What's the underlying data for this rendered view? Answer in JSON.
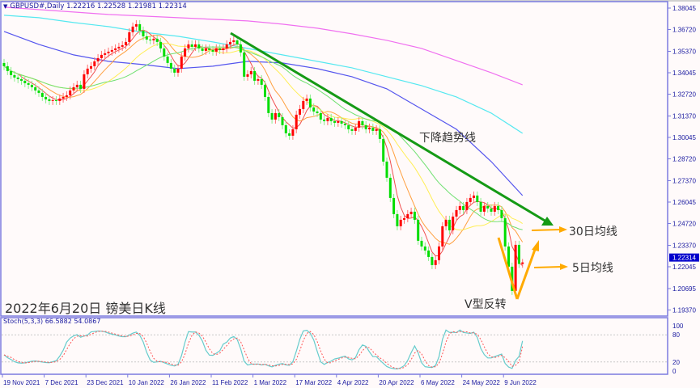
{
  "header": {
    "symbol": "GBPUSD#,Daily",
    "ohlc": "1.22216 1.22528 1.21981 1.22314"
  },
  "stoch_header": "Stoch(5,3,3) 66.5882 54.0867",
  "title": "2022年6月20日 镑美日K线",
  "annotations": {
    "trendline": "下降趋势线",
    "ma30": "30日均线",
    "ma5": "5日均线",
    "v_reversal": "V型反转"
  },
  "colors": {
    "bull": "#ff0000",
    "bear": "#00dd00",
    "ma5": "#f05050",
    "ma10": "#ffa040",
    "ma20": "#ffee55",
    "ma30": "#70e070",
    "ma_blue": "#5555ee",
    "ma_cyan": "#55e8f0",
    "ma_magenta": "#f070f0",
    "trendline": "#159a15",
    "arrows": "#ffaa00",
    "axis": "#7b7bdf",
    "price_tag": "#0000cc"
  },
  "chart_data": {
    "type": "candlestick",
    "symbol": "GBPUSD#",
    "timeframe": "Daily",
    "ylim": [
      1.19,
      1.383
    ],
    "price_ticks": [
      "1.38045",
      "1.36720",
      "1.35370",
      "1.34045",
      "1.32720",
      "1.31370",
      "1.30045",
      "1.28720",
      "1.27370",
      "1.26045",
      "1.24720",
      "1.23370",
      "1.22045",
      "1.20695",
      "1.19370"
    ],
    "current_price": "1.22314",
    "x_tick_every": 12,
    "x_ticks": [
      "19 Nov 2021",
      "7 Dec 2021",
      "23 Dec 2021",
      "10 Jan 2022",
      "26 Jan 2022",
      "11 Feb 2022",
      "1 Mar 2022",
      "17 Mar 2022",
      "4 Apr 2022",
      "20 Apr 2022",
      "6 May 2022",
      "24 May 2022",
      "9 Jun 2022"
    ],
    "closes": [
      1.3445,
      1.3415,
      1.339,
      1.3375,
      1.3365,
      1.3355,
      1.334,
      1.333,
      1.3315,
      1.3295,
      1.328,
      1.3255,
      1.324,
      1.323,
      1.3235,
      1.323,
      1.3245,
      1.3255,
      1.3265,
      1.3295,
      1.3315,
      1.333,
      1.3305,
      1.3395,
      1.343,
      1.3445,
      1.3475,
      1.3495,
      1.3515,
      1.3525,
      1.3535,
      1.3545,
      1.3555,
      1.3565,
      1.3575,
      1.3595,
      1.3655,
      1.369,
      1.3705,
      1.3665,
      1.363,
      1.361,
      1.3605,
      1.3615,
      1.3595,
      1.3555,
      1.3505,
      1.3465,
      1.343,
      1.3405,
      1.343,
      1.3505,
      1.3555,
      1.358,
      1.3565,
      1.358,
      1.3555,
      1.354,
      1.3555,
      1.3545,
      1.3535,
      1.3555,
      1.3545,
      1.3555,
      1.358,
      1.3595,
      1.3605,
      1.358,
      1.353,
      1.338,
      1.3395,
      1.3415,
      1.3355,
      1.3365,
      1.333,
      1.3255,
      1.3155,
      1.3115,
      1.3155,
      1.313,
      1.308,
      1.303,
      1.3015,
      1.3055,
      1.3145,
      1.318,
      1.323,
      1.3245,
      1.319,
      1.3165,
      1.3155,
      1.3115,
      1.3105,
      1.3125,
      1.3105,
      1.3095,
      1.3105,
      1.309,
      1.308,
      1.3055,
      1.3045,
      1.3065,
      1.3105,
      1.308,
      1.3055,
      1.3065,
      1.3045,
      1.3055,
      1.2995,
      1.2855,
      1.2755,
      1.263,
      1.253,
      1.2455,
      1.2495,
      1.2505,
      1.253,
      1.2545,
      1.2495,
      1.2365,
      1.233,
      1.2305,
      1.2265,
      1.2215,
      1.2245,
      1.233,
      1.2455,
      1.2495,
      1.243,
      1.2515,
      1.2555,
      1.258,
      1.2555,
      1.2605,
      1.263,
      1.2645,
      1.2605,
      1.2545,
      1.258,
      1.2565,
      1.2545,
      1.258,
      1.2555,
      1.2505,
      1.233,
      1.2205,
      1.2055,
      1.234,
      1.2222,
      1.22314
    ],
    "last_bar": {
      "open": 1.22216,
      "high": 1.22528,
      "low": 1.21981,
      "close": 1.22314
    },
    "long_ma_sample_every": 10,
    "long_mas": [
      {
        "color": "#5555ee",
        "values": [
          1.366,
          1.358,
          1.3515,
          1.3475,
          1.3455,
          1.343,
          1.3445,
          1.3475,
          1.3465,
          1.343,
          1.338,
          1.3305,
          1.318,
          1.3055,
          1.2855,
          1.2645
        ]
      },
      {
        "color": "#55e8f0",
        "values": [
          1.376,
          1.3745,
          1.3715,
          1.369,
          1.3655,
          1.363,
          1.3595,
          1.3555,
          1.3515,
          1.3475,
          1.3435,
          1.338,
          1.3325,
          1.3255,
          1.3155,
          1.303
        ]
      },
      {
        "color": "#f070f0",
        "values": [
          1.381,
          1.3795,
          1.378,
          1.3765,
          1.3755,
          1.3745,
          1.3735,
          1.3725,
          1.3705,
          1.368,
          1.3645,
          1.3605,
          1.3555,
          1.348,
          1.3405,
          1.333
        ]
      }
    ],
    "short_mas": [
      {
        "period": 5,
        "color": "#f05050"
      },
      {
        "period": 10,
        "color": "#ffa040"
      },
      {
        "period": 20,
        "color": "#ffee55"
      },
      {
        "period": 30,
        "color": "#70e070"
      }
    ],
    "stochastic": {
      "params": [
        5,
        3,
        3
      ],
      "k": 66.5882,
      "d": 54.0867,
      "levels": [
        80,
        20
      ],
      "ticks": [
        "100",
        "80",
        "20",
        "0"
      ],
      "k_color": "#66cccc",
      "d_color": "#ff5555"
    }
  }
}
